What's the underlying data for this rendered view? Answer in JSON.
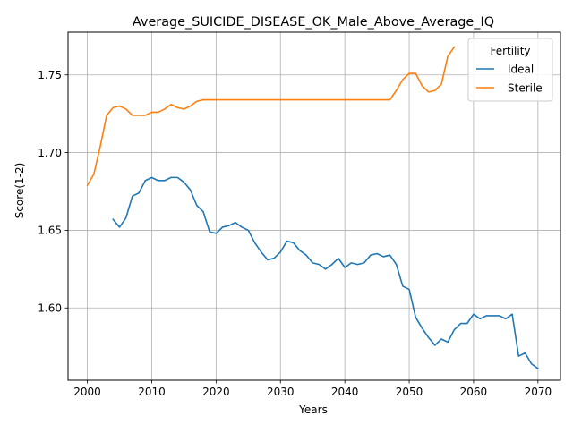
{
  "chart_data": {
    "type": "line",
    "title": "Average_SUICIDE_DISEASE_OK_Male_Above_Average_IQ",
    "xlabel": "Years",
    "ylabel": "Score(1-2)",
    "xlim": [
      1997,
      2073.5
    ],
    "ylim": [
      1.5535,
      1.7775
    ],
    "xticks": [
      2000,
      2010,
      2020,
      2030,
      2040,
      2050,
      2060,
      2070
    ],
    "yticks": [
      1.6,
      1.65,
      1.7,
      1.75
    ],
    "ytick_labels": [
      "1.60",
      "1.65",
      "1.70",
      "1.75"
    ],
    "grid": true,
    "legend": {
      "title": "Fertility",
      "position": "top-right"
    },
    "series": [
      {
        "name": "Ideal",
        "color": "#1f77b4",
        "x": [
          2004,
          2005,
          2006,
          2007,
          2008,
          2009,
          2010,
          2011,
          2012,
          2013,
          2014,
          2015,
          2016,
          2017,
          2018,
          2019,
          2020,
          2021,
          2022,
          2023,
          2024,
          2025,
          2026,
          2027,
          2028,
          2029,
          2030,
          2031,
          2032,
          2033,
          2034,
          2035,
          2036,
          2037,
          2038,
          2039,
          2040,
          2041,
          2042,
          2043,
          2044,
          2045,
          2046,
          2047,
          2048,
          2049,
          2050,
          2051,
          2052,
          2053,
          2054,
          2055,
          2056,
          2057,
          2058,
          2059,
          2060,
          2061,
          2062,
          2063,
          2064,
          2065,
          2066,
          2067,
          2068,
          2069,
          2070
        ],
        "y": [
          1.657,
          1.652,
          1.658,
          1.672,
          1.674,
          1.682,
          1.684,
          1.682,
          1.682,
          1.684,
          1.684,
          1.681,
          1.676,
          1.666,
          1.662,
          1.649,
          1.648,
          1.652,
          1.653,
          1.655,
          1.652,
          1.65,
          1.642,
          1.636,
          1.631,
          1.632,
          1.636,
          1.643,
          1.642,
          1.637,
          1.634,
          1.629,
          1.628,
          1.625,
          1.628,
          1.632,
          1.626,
          1.629,
          1.628,
          1.629,
          1.634,
          1.635,
          1.633,
          1.634,
          1.628,
          1.614,
          1.612,
          1.594,
          1.587,
          1.581,
          1.576,
          1.58,
          1.578,
          1.586,
          1.59,
          1.59,
          1.596,
          1.593,
          1.595,
          1.595,
          1.595,
          1.593,
          1.596,
          1.569,
          1.571,
          1.564,
          1.561
        ]
      },
      {
        "name": "Sterile",
        "color": "#ff7f0e",
        "x": [
          2000,
          2001,
          2002,
          2003,
          2004,
          2005,
          2006,
          2007,
          2008,
          2009,
          2010,
          2011,
          2012,
          2013,
          2014,
          2015,
          2016,
          2017,
          2018,
          2019,
          2020,
          2021,
          2022,
          2023,
          2024,
          2025,
          2026,
          2027,
          2028,
          2029,
          2030,
          2031,
          2032,
          2033,
          2034,
          2035,
          2036,
          2037,
          2038,
          2039,
          2040,
          2041,
          2042,
          2043,
          2044,
          2045,
          2046,
          2047,
          2048,
          2049,
          2050,
          2051,
          2052,
          2053,
          2054,
          2055,
          2056,
          2057
        ],
        "y": [
          1.679,
          1.686,
          1.704,
          1.724,
          1.729,
          1.73,
          1.728,
          1.724,
          1.724,
          1.724,
          1.726,
          1.726,
          1.728,
          1.731,
          1.729,
          1.728,
          1.73,
          1.733,
          1.734,
          1.734,
          1.734,
          1.734,
          1.734,
          1.734,
          1.734,
          1.734,
          1.734,
          1.734,
          1.734,
          1.734,
          1.734,
          1.734,
          1.734,
          1.734,
          1.734,
          1.734,
          1.734,
          1.734,
          1.734,
          1.734,
          1.734,
          1.734,
          1.734,
          1.734,
          1.734,
          1.734,
          1.734,
          1.734,
          1.74,
          1.747,
          1.751,
          1.751,
          1.743,
          1.739,
          1.74,
          1.744,
          1.762,
          1.768
        ]
      }
    ]
  }
}
